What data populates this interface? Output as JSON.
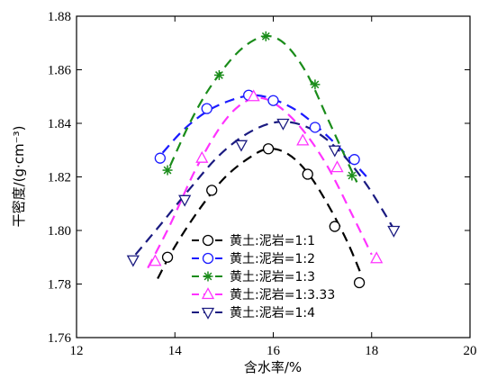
{
  "chart_data": {
    "type": "scatter",
    "title": "",
    "xlabel": "含水率/%",
    "ylabel": "干密度/(g·cm⁻³)",
    "xlim": [
      12,
      20
    ],
    "ylim": [
      1.76,
      1.88
    ],
    "xticks": [
      "12",
      "14",
      "16",
      "18",
      "20"
    ],
    "yticks": [
      "1.76",
      "1.78",
      "1.80",
      "1.82",
      "1.84",
      "1.86",
      "1.88"
    ],
    "grid": false,
    "legend_position": "bottom-left",
    "series": [
      {
        "name": "黄土:泥岩=1:1",
        "marker": "circle",
        "color": "#000000",
        "points": [
          [
            13.85,
            1.79
          ],
          [
            14.75,
            1.815
          ],
          [
            15.9,
            1.8305
          ],
          [
            16.7,
            1.821
          ],
          [
            17.25,
            1.8015
          ],
          [
            17.75,
            1.7805
          ]
        ],
        "curve": [
          [
            13.65,
            1.782
          ],
          [
            14.0,
            1.794
          ],
          [
            14.5,
            1.808
          ],
          [
            15.0,
            1.8195
          ],
          [
            15.5,
            1.827
          ],
          [
            15.9,
            1.8305
          ],
          [
            16.3,
            1.8285
          ],
          [
            16.7,
            1.8215
          ],
          [
            17.1,
            1.81
          ],
          [
            17.5,
            1.796
          ],
          [
            17.8,
            1.783
          ]
        ]
      },
      {
        "name": "黄土:泥岩=1:2",
        "marker": "circle",
        "color": "#1a1aff",
        "points": [
          [
            13.7,
            1.827
          ],
          [
            14.65,
            1.8455
          ],
          [
            15.5,
            1.8505
          ],
          [
            16.0,
            1.8485
          ],
          [
            16.85,
            1.8385
          ],
          [
            17.65,
            1.8265
          ]
        ],
        "curve": [
          [
            13.75,
            1.829
          ],
          [
            14.2,
            1.838
          ],
          [
            14.7,
            1.845
          ],
          [
            15.2,
            1.849
          ],
          [
            15.6,
            1.8505
          ],
          [
            16.0,
            1.849
          ],
          [
            16.5,
            1.8445
          ],
          [
            17.0,
            1.837
          ],
          [
            17.5,
            1.828
          ],
          [
            17.9,
            1.82
          ]
        ]
      },
      {
        "name": "黄土:泥岩=1:3",
        "marker": "asterisk",
        "color": "#1a8c1a",
        "points": [
          [
            13.85,
            1.8225
          ],
          [
            14.9,
            1.858
          ],
          [
            15.85,
            1.8725
          ],
          [
            16.85,
            1.8545
          ],
          [
            17.6,
            1.8205
          ]
        ],
        "curve": [
          [
            13.9,
            1.824
          ],
          [
            14.3,
            1.84
          ],
          [
            14.7,
            1.853
          ],
          [
            15.2,
            1.865
          ],
          [
            15.6,
            1.871
          ],
          [
            15.95,
            1.8725
          ],
          [
            16.3,
            1.8685
          ],
          [
            16.7,
            1.858
          ],
          [
            17.1,
            1.842
          ],
          [
            17.5,
            1.826
          ],
          [
            17.7,
            1.818
          ]
        ]
      },
      {
        "name": "黄土:泥岩=1:3.33",
        "marker": "triangle-up",
        "color": "#ff33ff",
        "points": [
          [
            13.6,
            1.7885
          ],
          [
            14.55,
            1.827
          ],
          [
            15.6,
            1.85
          ],
          [
            16.6,
            1.8335
          ],
          [
            17.3,
            1.8235
          ],
          [
            18.1,
            1.7895
          ]
        ],
        "curve": [
          [
            13.45,
            1.786
          ],
          [
            13.9,
            1.802
          ],
          [
            14.4,
            1.822
          ],
          [
            14.9,
            1.838
          ],
          [
            15.3,
            1.8465
          ],
          [
            15.7,
            1.8495
          ],
          [
            16.1,
            1.8465
          ],
          [
            16.6,
            1.8375
          ],
          [
            17.1,
            1.824
          ],
          [
            17.6,
            1.806
          ],
          [
            18.0,
            1.791
          ]
        ]
      },
      {
        "name": "黄土:泥岩=1:4",
        "marker": "triangle-down",
        "color": "#1a1a80",
        "points": [
          [
            13.15,
            1.789
          ],
          [
            14.2,
            1.8115
          ],
          [
            15.35,
            1.832
          ],
          [
            16.2,
            1.84
          ],
          [
            17.25,
            1.83
          ],
          [
            18.45,
            1.8
          ]
        ],
        "curve": [
          [
            13.2,
            1.791
          ],
          [
            13.7,
            1.802
          ],
          [
            14.3,
            1.8155
          ],
          [
            14.9,
            1.828
          ],
          [
            15.5,
            1.8365
          ],
          [
            16.1,
            1.8405
          ],
          [
            16.7,
            1.8385
          ],
          [
            17.3,
            1.8305
          ],
          [
            17.9,
            1.817
          ],
          [
            18.5,
            1.799
          ]
        ]
      }
    ]
  }
}
